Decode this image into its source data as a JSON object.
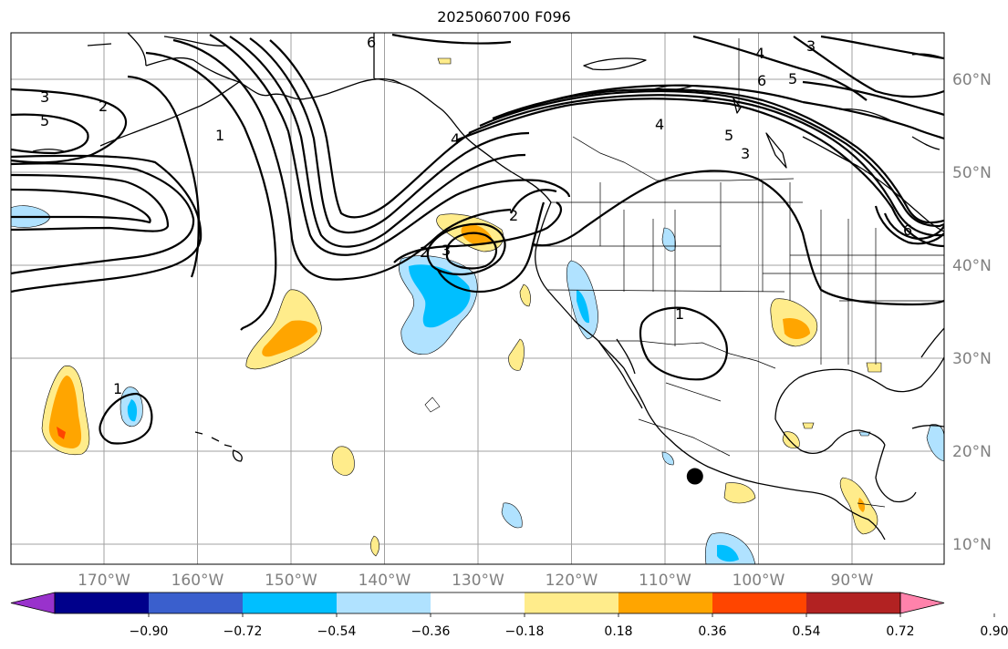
{
  "title": "2025060700 F096",
  "map": {
    "lon_ticks": [
      {
        "lon": -170,
        "label": "170°W"
      },
      {
        "lon": -160,
        "label": "160°W"
      },
      {
        "lon": -150,
        "label": "150°W"
      },
      {
        "lon": -140,
        "label": "140°W"
      },
      {
        "lon": -130,
        "label": "130°W"
      },
      {
        "lon": -120,
        "label": "120°W"
      },
      {
        "lon": -110,
        "label": "110°W"
      },
      {
        "lon": -100,
        "label": "100°W"
      },
      {
        "lon": -90,
        "label": "90°W"
      }
    ],
    "lat_ticks": [
      {
        "lat": 10,
        "label": "10°N"
      },
      {
        "lat": 20,
        "label": "20°N"
      },
      {
        "lat": 30,
        "label": "30°N"
      },
      {
        "lat": 40,
        "label": "40°N"
      },
      {
        "lat": 50,
        "label": "50°N"
      },
      {
        "lat": 60,
        "label": "60°N"
      }
    ],
    "contour_labels": [
      "1",
      "2",
      "3",
      "4",
      "5",
      "6"
    ],
    "marker": {
      "name": "storm-center-marker",
      "lon": -106.8,
      "lat": 17.3
    }
  },
  "colorbar": {
    "colors": [
      "#9932cc",
      "#00008b",
      "#3a5fcd",
      "#00bfff",
      "#b0e2ff",
      "#ffffff",
      "#ffec8b",
      "#ffa500",
      "#ff4500",
      "#b22222",
      "#ff82ab"
    ],
    "tick_labels": [
      "−0.90",
      "−0.72",
      "−0.54",
      "−0.36",
      "−0.18",
      "0.18",
      "0.36",
      "0.54",
      "0.72",
      "0.90"
    ]
  }
}
